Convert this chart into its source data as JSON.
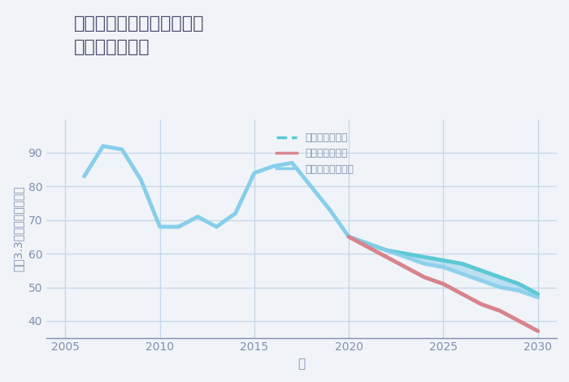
{
  "title": "神奈川県伊勢原市下糟屋の\n土地の価格推移",
  "xlabel": "年",
  "ylabel": "平（3.3㎡）単価（万円）",
  "background_color": "#f0f4f8",
  "plot_background": "#f0f4f8",
  "historical_years": [
    2006,
    2007,
    2008,
    2009,
    2010,
    2011,
    2012,
    2013,
    2014,
    2015,
    2016,
    2017,
    2018,
    2019,
    2020
  ],
  "historical_values": [
    83,
    92,
    91,
    82,
    68,
    68,
    71,
    68,
    72,
    84,
    86,
    87,
    80,
    73,
    65
  ],
  "good_years": [
    2020,
    2021,
    2022,
    2023,
    2024,
    2025,
    2026,
    2027,
    2028,
    2029,
    2030
  ],
  "good_values": [
    65,
    63,
    61,
    60,
    59,
    58,
    57,
    55,
    53,
    51,
    48
  ],
  "normal_years": [
    2020,
    2021,
    2022,
    2023,
    2024,
    2025,
    2026,
    2027,
    2028,
    2029,
    2030
  ],
  "normal_values": [
    65,
    63,
    61,
    59,
    57,
    56,
    54,
    52,
    50,
    49,
    47
  ],
  "bad_years": [
    2020,
    2021,
    2022,
    2023,
    2024,
    2025,
    2026,
    2027,
    2028,
    2029,
    2030
  ],
  "bad_values": [
    65,
    62,
    59,
    56,
    53,
    51,
    48,
    45,
    43,
    40,
    37
  ],
  "color_historical": "#87CEEB",
  "color_good": "#5bc8d5",
  "color_normal": "#87CEEB",
  "color_bad": "#d9838d",
  "ylim": [
    35,
    100
  ],
  "xlim": [
    2004,
    2031
  ],
  "yticks": [
    40,
    50,
    60,
    70,
    80,
    90
  ],
  "xticks": [
    2005,
    2010,
    2015,
    2020,
    2025,
    2030
  ],
  "legend_labels": [
    "グッドシナリオ",
    "バッドシナリオ",
    "ノーマルシナリオ"
  ],
  "legend_colors": [
    "#5bc8d5",
    "#d9838d",
    "#87CEEB"
  ],
  "title_color": "#4a4a6a",
  "axis_color": "#8090b0",
  "grid_color": "#c8d8e8"
}
